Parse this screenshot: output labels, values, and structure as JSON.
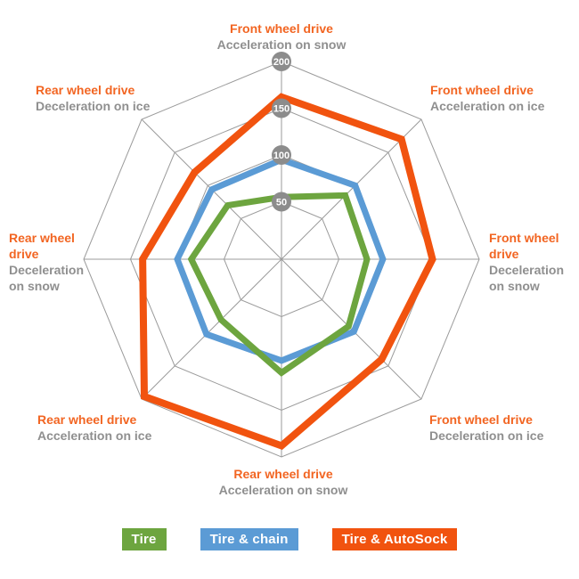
{
  "chart_data": {
    "type": "radar",
    "max": 200,
    "ticks": [
      50,
      100,
      150,
      200
    ],
    "grid": true,
    "legend_position": "bottom",
    "axes": [
      {
        "drive": "Front wheel drive",
        "condition": "Acceleration on snow"
      },
      {
        "drive": "Front wheel drive",
        "condition": "Acceleration on ice"
      },
      {
        "drive": "Front wheel drive",
        "condition": "Deceleration on snow"
      },
      {
        "drive": "Front wheel drive",
        "condition": "Deceleration on ice"
      },
      {
        "drive": "Rear wheel drive",
        "condition": "Acceleration on snow"
      },
      {
        "drive": "Rear wheel drive",
        "condition": "Acceleration on ice"
      },
      {
        "drive": "Rear wheel drive",
        "condition": "Deceleration on snow"
      },
      {
        "drive": "Rear wheel drive",
        "condition": "Deceleration on ice"
      }
    ],
    "series": [
      {
        "name": "Tire",
        "color": "#6da53f",
        "values": [
          55,
          85,
          80,
          90,
          110,
          80,
          85,
          70
        ]
      },
      {
        "name": "Tire & chain",
        "color": "#5b9bd5",
        "values": [
          95,
          100,
          97,
          98,
          97,
          102,
          100,
          94
        ]
      },
      {
        "name": "Tire & AutoSock",
        "color": "#f1530f",
        "values": [
          162,
          170,
          150,
          140,
          188,
          196,
          137,
          120
        ]
      }
    ]
  },
  "colors": {
    "axis_heading": "#f26522",
    "axis_sub": "#8f8f8f",
    "grid": "#9b9b9b",
    "tick_fill": "#8c8c8c",
    "tick_text": "#ffffff"
  }
}
